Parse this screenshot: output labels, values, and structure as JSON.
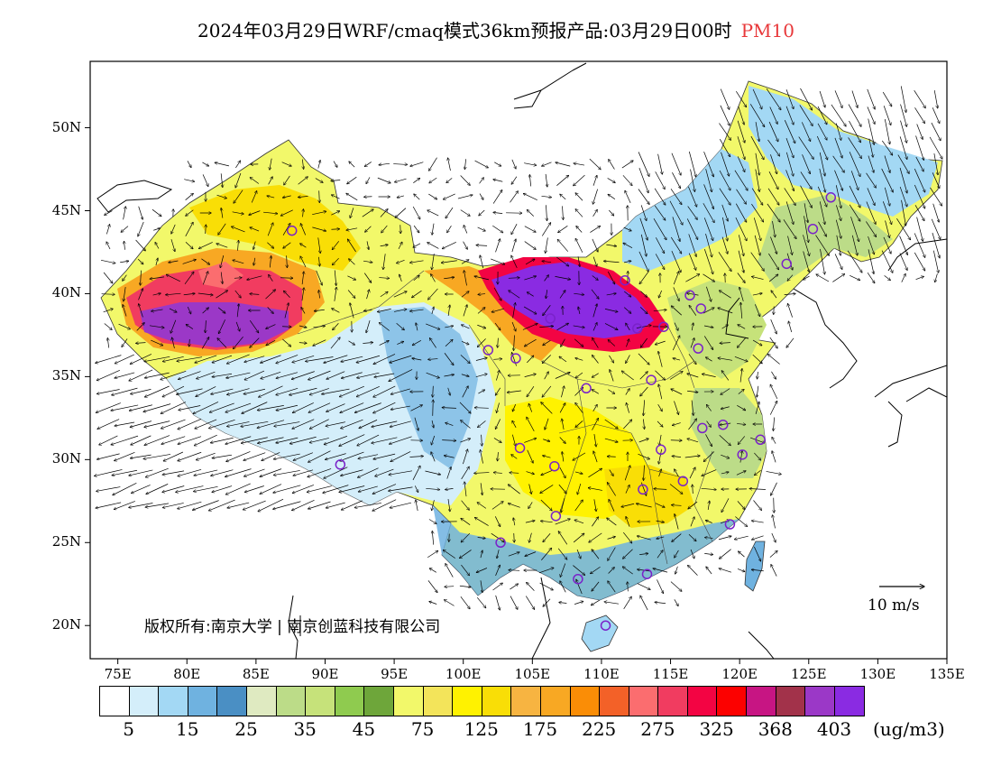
{
  "title": {
    "main": "2024年03月29日WRF/cmaq模式36km预报产品:03月29日00时",
    "pollutant": "PM10"
  },
  "axes": {
    "lat_labels": [
      "50N",
      "45N",
      "40N",
      "35N",
      "30N",
      "25N",
      "20N"
    ],
    "lon_labels": [
      "75E",
      "80E",
      "85E",
      "90E",
      "95E",
      "100E",
      "105E",
      "110E",
      "115E",
      "120E",
      "125E",
      "130E",
      "135E"
    ],
    "lon_range": [
      73,
      135
    ],
    "lat_range": [
      18,
      54
    ]
  },
  "copyright": "版权所有:南京大学 | 南京创蓝科技有限公司",
  "wind_reference": "10 m/s",
  "legend": {
    "units": "(ug/m3)",
    "labels": [
      "5",
      "15",
      "25",
      "35",
      "45",
      "75",
      "125",
      "175",
      "225",
      "275",
      "325",
      "368",
      "403"
    ],
    "colors": [
      "#ffffff",
      "#d4eefa",
      "#a3d8f4",
      "#6fb2e0",
      "#4a8fc4",
      "#dfeac1",
      "#bcdc88",
      "#c6e27a",
      "#8fcb4f",
      "#6ea63a",
      "#f2f86a",
      "#f3e45a",
      "#fff200",
      "#f9de06",
      "#f7b441",
      "#f8a823",
      "#fa8d06",
      "#f36128",
      "#fb6d6f",
      "#f13c60",
      "#f30443",
      "#fc0100",
      "#c71583",
      "#a2324a",
      "#9b38c7",
      "#8a2be2"
    ]
  },
  "cities": [
    {
      "lon": 87.6,
      "lat": 43.8
    },
    {
      "lon": 91.1,
      "lat": 29.7
    },
    {
      "lon": 101.8,
      "lat": 36.6
    },
    {
      "lon": 103.8,
      "lat": 36.1
    },
    {
      "lon": 106.3,
      "lat": 38.5
    },
    {
      "lon": 108.9,
      "lat": 34.3
    },
    {
      "lon": 111.7,
      "lat": 40.8
    },
    {
      "lon": 112.6,
      "lat": 37.9
    },
    {
      "lon": 114.5,
      "lat": 38.0
    },
    {
      "lon": 116.4,
      "lat": 39.9
    },
    {
      "lon": 117.2,
      "lat": 39.1
    },
    {
      "lon": 117.0,
      "lat": 36.7
    },
    {
      "lon": 113.6,
      "lat": 34.8
    },
    {
      "lon": 104.1,
      "lat": 30.7
    },
    {
      "lon": 106.6,
      "lat": 29.6
    },
    {
      "lon": 106.7,
      "lat": 26.6
    },
    {
      "lon": 102.7,
      "lat": 25.0
    },
    {
      "lon": 108.3,
      "lat": 22.8
    },
    {
      "lon": 113.3,
      "lat": 23.1
    },
    {
      "lon": 110.3,
      "lat": 20.0
    },
    {
      "lon": 114.3,
      "lat": 30.6
    },
    {
      "lon": 113.0,
      "lat": 28.2
    },
    {
      "lon": 115.9,
      "lat": 28.7
    },
    {
      "lon": 117.3,
      "lat": 31.9
    },
    {
      "lon": 118.8,
      "lat": 32.1
    },
    {
      "lon": 120.2,
      "lat": 30.3
    },
    {
      "lon": 121.5,
      "lat": 31.2
    },
    {
      "lon": 119.3,
      "lat": 26.1
    },
    {
      "lon": 123.4,
      "lat": 41.8
    },
    {
      "lon": 125.3,
      "lat": 43.9
    },
    {
      "lon": 126.6,
      "lat": 45.8
    }
  ]
}
